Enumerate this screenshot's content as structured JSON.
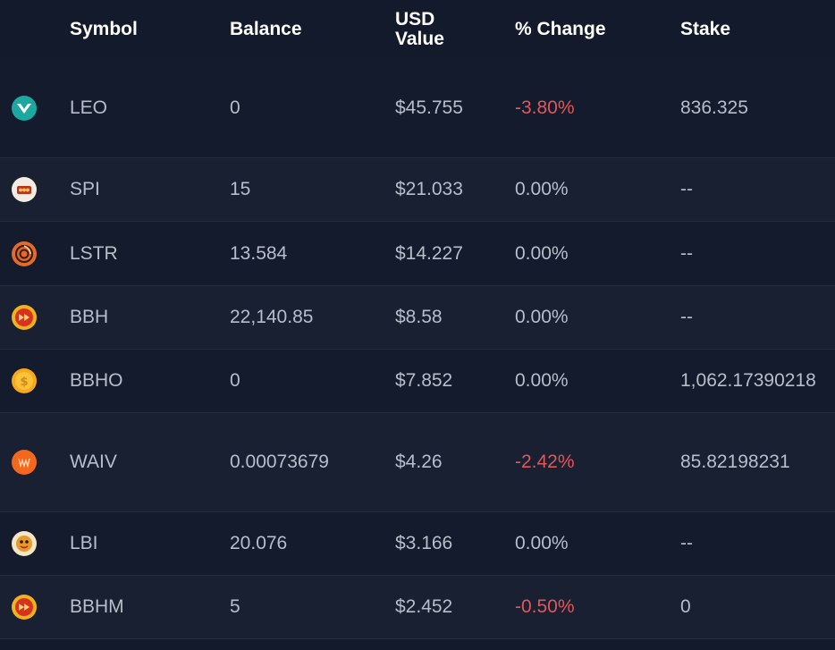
{
  "table": {
    "headers": {
      "symbol": "Symbol",
      "balance": "Balance",
      "usd_line1": "USD",
      "usd_line2": "Value",
      "change": "% Change",
      "stake": "Stake"
    },
    "rows": [
      {
        "icon": "leo-icon",
        "symbol": "LEO",
        "balance": "0",
        "usd": "$45.755",
        "change": "-3.80%",
        "negative": true,
        "stake": "836.325"
      },
      {
        "icon": "spi-icon",
        "symbol": "SPI",
        "balance": "15",
        "usd": "$21.033",
        "change": "0.00%",
        "negative": false,
        "stake": "--"
      },
      {
        "icon": "lstr-icon",
        "symbol": "LSTR",
        "balance": "13.584",
        "usd": "$14.227",
        "change": "0.00%",
        "negative": false,
        "stake": "--"
      },
      {
        "icon": "bbh-icon",
        "symbol": "BBH",
        "balance": "22,140.85",
        "usd": "$8.58",
        "change": "0.00%",
        "negative": false,
        "stake": "--"
      },
      {
        "icon": "bbho-icon",
        "symbol": "BBHO",
        "balance": "0",
        "usd": "$7.852",
        "change": "0.00%",
        "negative": false,
        "stake": "1,062.17390218"
      },
      {
        "icon": "waiv-icon",
        "symbol": "WAIV",
        "balance": "0.00073679",
        "usd": "$4.26",
        "change": "-2.42%",
        "negative": true,
        "stake": "85.82198231"
      },
      {
        "icon": "lbi-icon",
        "symbol": "LBI",
        "balance": "20.076",
        "usd": "$3.166",
        "change": "0.00%",
        "negative": false,
        "stake": "--"
      },
      {
        "icon": "bbhm-icon",
        "symbol": "BBHM",
        "balance": "5",
        "usd": "$2.452",
        "change": "-0.50%",
        "negative": true,
        "stake": "0"
      }
    ]
  },
  "colors": {
    "background": "#131a2b",
    "negative": "#e0575c",
    "text": "#b7bec9",
    "header_text": "#ffffff"
  }
}
